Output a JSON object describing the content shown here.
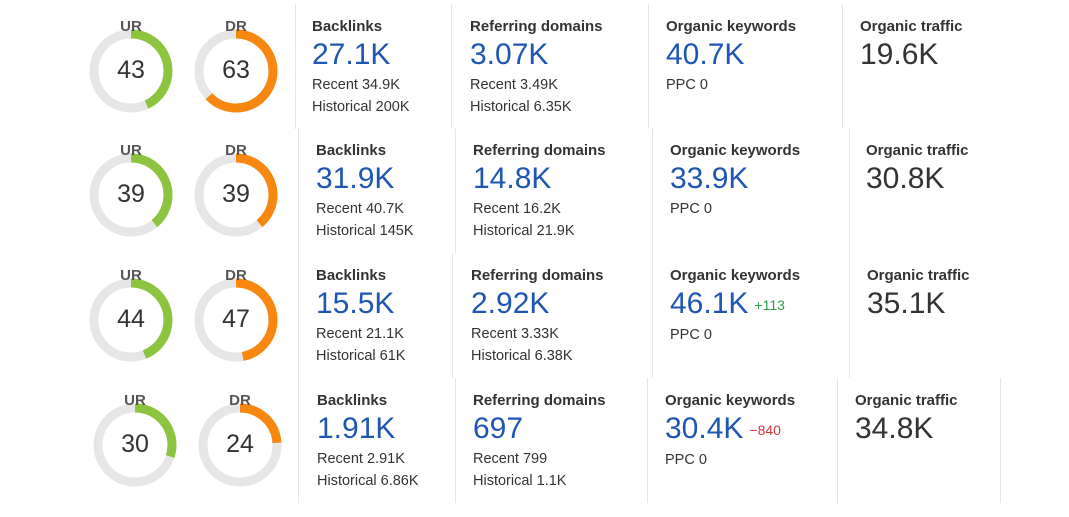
{
  "colors": {
    "ur": "#8cc43f",
    "dr": "#f7870f",
    "track": "#e6e6e6",
    "blue_value": "#1f56b3",
    "positive": "#2e9a48",
    "negative": "#d0343c"
  },
  "rows": [
    {
      "ur": {
        "label": "UR",
        "value": "43",
        "fraction": 0.43
      },
      "dr": {
        "label": "DR",
        "value": "63",
        "fraction": 0.63
      },
      "backlinks": {
        "title": "Backlinks",
        "value": "27.1K",
        "recent": "Recent 34.9K",
        "historical": "Historical 200K"
      },
      "referring_domains": {
        "title": "Referring domains",
        "value": "3.07K",
        "recent": "Recent 3.49K",
        "historical": "Historical 6.35K"
      },
      "organic_keywords": {
        "title": "Organic keywords",
        "value": "40.7K",
        "delta": "",
        "ppc": "PPC 0"
      },
      "organic_traffic": {
        "title": "Organic traffic",
        "value": "19.6K"
      }
    },
    {
      "ur": {
        "label": "UR",
        "value": "39",
        "fraction": 0.39
      },
      "dr": {
        "label": "DR",
        "value": "39",
        "fraction": 0.39
      },
      "backlinks": {
        "title": "Backlinks",
        "value": "31.9K",
        "recent": "Recent 40.7K",
        "historical": "Historical 145K"
      },
      "referring_domains": {
        "title": "Referring domains",
        "value": "14.8K",
        "recent": "Recent 16.2K",
        "historical": "Historical 21.9K"
      },
      "organic_keywords": {
        "title": "Organic keywords",
        "value": "33.9K",
        "delta": "",
        "ppc": "PPC 0"
      },
      "organic_traffic": {
        "title": "Organic traffic",
        "value": "30.8K"
      }
    },
    {
      "ur": {
        "label": "UR",
        "value": "44",
        "fraction": 0.44
      },
      "dr": {
        "label": "DR",
        "value": "47",
        "fraction": 0.47
      },
      "backlinks": {
        "title": "Backlinks",
        "value": "15.5K",
        "recent": "Recent 21.1K",
        "historical": "Historical 61K"
      },
      "referring_domains": {
        "title": "Referring domains",
        "value": "2.92K",
        "recent": "Recent 3.33K",
        "historical": "Historical 6.38K"
      },
      "organic_keywords": {
        "title": "Organic keywords",
        "value": "46.1K",
        "delta": "+113",
        "ppc": "PPC 0"
      },
      "organic_traffic": {
        "title": "Organic traffic",
        "value": "35.1K"
      }
    },
    {
      "ur": {
        "label": "UR",
        "value": "30",
        "fraction": 0.3
      },
      "dr": {
        "label": "DR",
        "value": "24",
        "fraction": 0.24
      },
      "backlinks": {
        "title": "Backlinks",
        "value": "1.91K",
        "recent": "Recent 2.91K",
        "historical": "Historical 6.86K"
      },
      "referring_domains": {
        "title": "Referring domains",
        "value": "697",
        "recent": "Recent 799",
        "historical": "Historical 1.1K"
      },
      "organic_keywords": {
        "title": "Organic keywords",
        "value": "30.4K",
        "delta": "−840",
        "ppc": "PPC 0"
      },
      "organic_traffic": {
        "title": "Organic traffic",
        "value": "34.8K"
      }
    }
  ]
}
